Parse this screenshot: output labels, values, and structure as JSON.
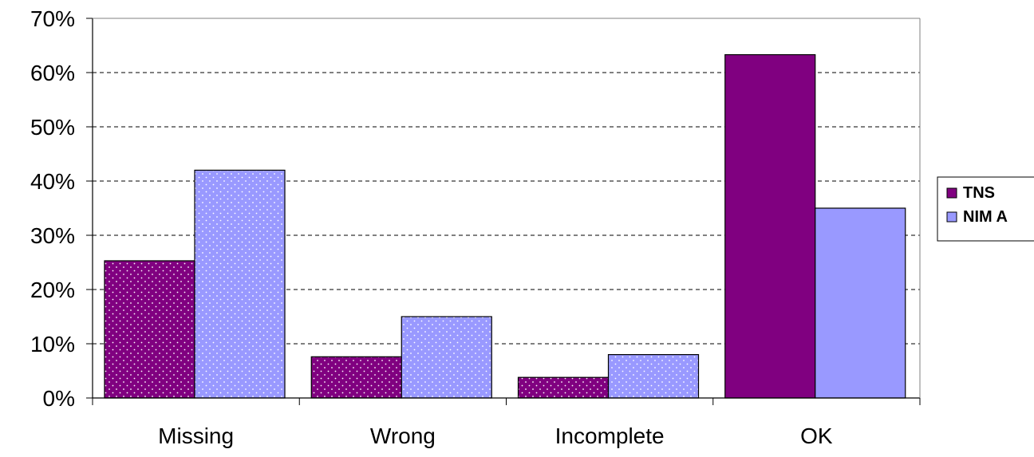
{
  "chart_data": {
    "type": "bar",
    "categories": [
      "Missing",
      "Wrong",
      "Incomplete",
      "OK"
    ],
    "series": [
      {
        "name": "TNS",
        "values": [
          25.3,
          7.6,
          3.8,
          63.3
        ],
        "color": "#800080",
        "pattern": "dotted"
      },
      {
        "name": "NIM A",
        "values": [
          42.0,
          15.0,
          8.0,
          35.0
        ],
        "color": "#9999ff",
        "pattern": "dotted-except-last"
      }
    ],
    "ylim": [
      0,
      70
    ],
    "yticks": [
      0,
      10,
      20,
      30,
      40,
      50,
      60,
      70
    ],
    "ytick_suffix": "%",
    "grid": "horizontal-dashed",
    "legend_position": "right",
    "title": "",
    "xlabel": "",
    "ylabel": ""
  }
}
